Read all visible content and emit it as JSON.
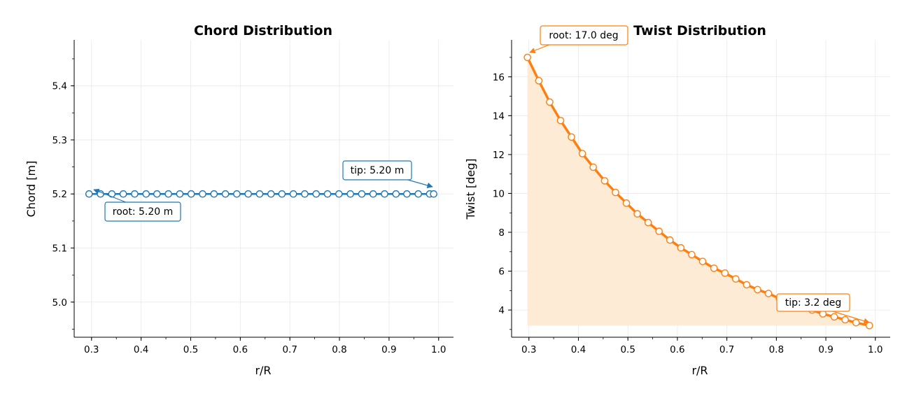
{
  "chart_data": [
    {
      "type": "line",
      "title": "Chord Distribution",
      "xlabel": "r/R",
      "ylabel": "Chord [m]",
      "xlim": [
        0.265,
        1.03
      ],
      "ylim": [
        4.935,
        5.485
      ],
      "xticks": [
        0.3,
        0.4,
        0.5,
        0.6,
        0.7,
        0.8,
        0.9,
        1.0
      ],
      "xtick_labels": [
        "0.3",
        "0.4",
        "0.5",
        "0.6",
        "0.7",
        "0.8",
        "0.9",
        "1.0"
      ],
      "yticks": [
        5.0,
        5.1,
        5.2,
        5.3,
        5.4
      ],
      "ytick_labels": [
        "5.0",
        "5.1",
        "5.2",
        "5.3",
        "5.4"
      ],
      "grid": true,
      "color": "#1f77b4",
      "series": [
        {
          "x": [
            0.295,
            0.318,
            0.341,
            0.364,
            0.387,
            0.41,
            0.432,
            0.455,
            0.478,
            0.501,
            0.524,
            0.547,
            0.57,
            0.593,
            0.616,
            0.639,
            0.662,
            0.684,
            0.707,
            0.73,
            0.753,
            0.776,
            0.799,
            0.822,
            0.845,
            0.868,
            0.891,
            0.914,
            0.936,
            0.959,
            0.982,
            0.99
          ],
          "y": [
            5.2,
            5.2,
            5.2,
            5.2,
            5.2,
            5.2,
            5.2,
            5.2,
            5.2,
            5.2,
            5.2,
            5.2,
            5.2,
            5.2,
            5.2,
            5.2,
            5.2,
            5.2,
            5.2,
            5.2,
            5.2,
            5.2,
            5.2,
            5.2,
            5.2,
            5.2,
            5.2,
            5.2,
            5.2,
            5.2,
            5.2,
            5.2
          ]
        }
      ],
      "annotations": [
        {
          "text": "root: 5.20 m",
          "x": 0.295,
          "y": 5.2
        },
        {
          "text": "tip: 5.20 m",
          "x": 0.99,
          "y": 5.2
        }
      ]
    },
    {
      "type": "area",
      "title": "Twist Distribution",
      "xlabel": "r/R",
      "ylabel": "Twist [deg]",
      "xlim": [
        0.265,
        1.03
      ],
      "ylim": [
        2.6,
        17.9
      ],
      "xticks": [
        0.3,
        0.4,
        0.5,
        0.6,
        0.7,
        0.8,
        0.9,
        1.0
      ],
      "xtick_labels": [
        "0.3",
        "0.4",
        "0.5",
        "0.6",
        "0.7",
        "0.8",
        "0.9",
        "1.0"
      ],
      "yticks": [
        4,
        6,
        8,
        10,
        12,
        14,
        16
      ],
      "ytick_labels": [
        "4",
        "6",
        "8",
        "10",
        "12",
        "14",
        "16"
      ],
      "grid": true,
      "color": "#ff7f0e",
      "fill_color": "#fdebd6",
      "series": [
        {
          "x": [
            0.297,
            0.32,
            0.342,
            0.364,
            0.386,
            0.408,
            0.43,
            0.453,
            0.475,
            0.497,
            0.519,
            0.541,
            0.563,
            0.585,
            0.607,
            0.629,
            0.651,
            0.674,
            0.696,
            0.718,
            0.74,
            0.762,
            0.784,
            0.806,
            0.828,
            0.85,
            0.872,
            0.894,
            0.917,
            0.939,
            0.961,
            0.988
          ],
          "y": [
            17.0,
            15.8,
            14.7,
            13.75,
            12.9,
            12.05,
            11.35,
            10.65,
            10.05,
            9.5,
            8.95,
            8.5,
            8.05,
            7.6,
            7.2,
            6.85,
            6.5,
            6.15,
            5.9,
            5.6,
            5.3,
            5.05,
            4.85,
            4.6,
            4.4,
            4.2,
            4.0,
            3.8,
            3.65,
            3.5,
            3.35,
            3.2
          ]
        }
      ],
      "annotations": [
        {
          "text": "root: 17.0 deg",
          "x": 0.297,
          "y": 17.0
        },
        {
          "text": "tip: 3.2 deg",
          "x": 0.988,
          "y": 3.2
        }
      ]
    }
  ]
}
